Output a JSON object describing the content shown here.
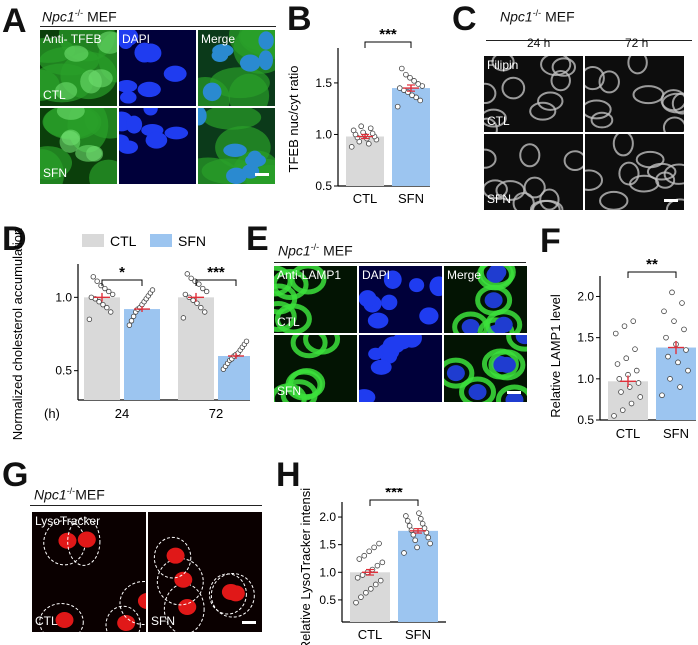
{
  "colors": {
    "ctl": "#d9d9d9",
    "sfn": "#9cc5f0",
    "error": "#e0303a",
    "green": "#1e8f1e",
    "blue": "#1a2bd0",
    "red": "#e01818"
  },
  "panels": {
    "A": {
      "letter": "A",
      "cell": "Npc1",
      "sup": "-/-",
      "cell_type": "MEF",
      "cols": [
        "Anti- TFEB",
        "DAPI",
        "Merge"
      ],
      "rows": [
        "CTL",
        "SFN"
      ]
    },
    "B": {
      "letter": "B"
    },
    "C": {
      "letter": "C",
      "cell": "Npc1",
      "sup": "-/-",
      "cell_type": "MEF",
      "cols": [
        "24 h",
        "72 h"
      ],
      "stain": "Filipin",
      "rows": [
        "CTL",
        "SFN"
      ]
    },
    "D": {
      "letter": "D"
    },
    "E": {
      "letter": "E",
      "cell": "Npc1",
      "sup": "-/-",
      "cell_type": "MEF",
      "cols": [
        "Anti-LAMP1",
        "DAPI",
        "Merge"
      ],
      "rows": [
        "CTL",
        "SFN"
      ]
    },
    "F": {
      "letter": "F"
    },
    "G": {
      "letter": "G",
      "cell": "Npc1",
      "sup": "-/-",
      "cell_type": "MEF",
      "stain": "LysoTracker",
      "rows": [
        "CTL",
        "SFN"
      ]
    },
    "H": {
      "letter": "H"
    }
  },
  "chart_data": [
    {
      "id": "B",
      "type": "bar",
      "title": "",
      "ylabel": "TFEB nuc/cyt ratio",
      "xlabel": "",
      "categories": [
        "CTL",
        "SFN"
      ],
      "values": [
        0.98,
        1.45
      ],
      "errors": [
        0.02,
        0.03
      ],
      "ylim": [
        0.5,
        1.8
      ],
      "yticks": [
        "0.5",
        "1.0",
        "1.5"
      ],
      "ytick_values": [
        0.5,
        1.0,
        1.5
      ],
      "significance": "***",
      "points": [
        [
          0.88,
          0.91,
          0.93,
          0.95,
          0.96,
          0.97,
          0.98,
          0.99,
          1.0,
          1.01,
          1.02,
          1.04,
          1.06,
          1.08
        ],
        [
          1.27,
          1.33,
          1.36,
          1.38,
          1.41,
          1.43,
          1.45,
          1.47,
          1.49,
          1.52,
          1.55,
          1.58,
          1.64
        ]
      ]
    },
    {
      "id": "D",
      "type": "bar",
      "title": "",
      "ylabel": "Normalized cholesterol accumulation",
      "xlabel": "(h)",
      "legend": [
        "CTL",
        "SFN"
      ],
      "legend_position": "top",
      "categories": [
        "24",
        "72"
      ],
      "series": [
        {
          "name": "CTL",
          "values": [
            1.0,
            1.0
          ],
          "errors": [
            0.03,
            0.03
          ],
          "points": [
            [
              0.85,
              0.9,
              0.93,
              0.95,
              0.97,
              0.99,
              1.0,
              1.02,
              1.04,
              1.06,
              1.08,
              1.11,
              1.14
            ],
            [
              0.86,
              0.9,
              0.93,
              0.96,
              0.98,
              1.0,
              1.02,
              1.04,
              1.06,
              1.09,
              1.11,
              1.13,
              1.16
            ]
          ]
        },
        {
          "name": "SFN",
          "values": [
            0.92,
            0.6
          ],
          "errors": [
            0.02,
            0.02
          ],
          "points": [
            [
              0.81,
              0.84,
              0.87,
              0.9,
              0.92,
              0.93,
              0.95,
              0.97,
              0.99,
              1.01,
              1.03,
              1.05
            ],
            [
              0.51,
              0.53,
              0.55,
              0.57,
              0.58,
              0.6,
              0.61,
              0.62,
              0.64,
              0.66,
              0.68,
              0.7
            ]
          ]
        }
      ],
      "ylim": [
        0.3,
        1.2
      ],
      "yticks": [
        "0.5",
        "1.0"
      ],
      "ytick_values": [
        0.5,
        1.0
      ],
      "significance": [
        "*",
        "***"
      ]
    },
    {
      "id": "F",
      "type": "bar",
      "title": "",
      "ylabel": "Relative LAMP1 level",
      "xlabel": "",
      "categories": [
        "CTL",
        "SFN"
      ],
      "values": [
        0.97,
        1.38
      ],
      "errors": [
        0.07,
        0.08
      ],
      "ylim": [
        0.5,
        2.2
      ],
      "yticks": [
        "0.5",
        "1.0",
        "1.5",
        "2.0"
      ],
      "ytick_values": [
        0.5,
        1.0,
        1.5,
        2.0
      ],
      "significance": "**",
      "points": [
        [
          0.55,
          0.62,
          0.7,
          0.78,
          0.84,
          0.9,
          0.95,
          1.0,
          1.05,
          1.1,
          1.18,
          1.25,
          1.36,
          1.55,
          1.64,
          1.7
        ],
        [
          0.8,
          0.9,
          1.0,
          1.1,
          1.2,
          1.27,
          1.35,
          1.42,
          1.5,
          1.6,
          1.7,
          1.82,
          1.92,
          2.05
        ]
      ]
    },
    {
      "id": "H",
      "type": "bar",
      "title": "",
      "ylabel": "Relative LysoTracker intensity",
      "xlabel": "",
      "categories": [
        "CTL",
        "SFN"
      ],
      "values": [
        1.0,
        1.75
      ],
      "errors": [
        0.05,
        0.04
      ],
      "ylim": [
        0.1,
        2.2
      ],
      "yticks": [
        "0.5",
        "1.0",
        "1.5",
        "2.0"
      ],
      "ytick_values": [
        0.5,
        1.0,
        1.5,
        2.0
      ],
      "significance": "***",
      "points": [
        [
          0.45,
          0.55,
          0.63,
          0.7,
          0.78,
          0.85,
          0.9,
          0.95,
          1.0,
          1.05,
          1.12,
          1.18,
          1.24,
          1.3,
          1.38,
          1.45,
          1.52
        ],
        [
          1.35,
          1.45,
          1.52,
          1.58,
          1.63,
          1.68,
          1.72,
          1.76,
          1.8,
          1.84,
          1.88,
          1.93,
          1.97,
          2.02,
          2.07
        ]
      ]
    }
  ]
}
